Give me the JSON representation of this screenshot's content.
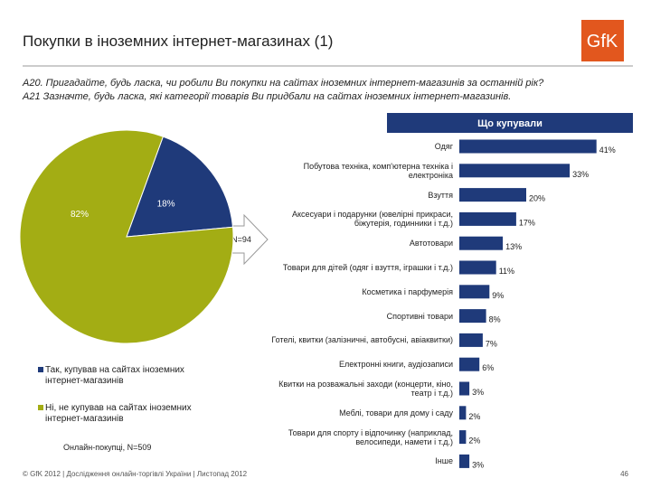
{
  "header": {
    "title": "Покупки в іноземних інтернет-магазинах (1)",
    "logo": "GfK"
  },
  "questions": [
    "A20. Пригадайте, будь ласка, чи робили Ви покупки на сайтах іноземних інтернет-магазинів за останній рік?",
    "A21 Зазначте, будь ласка, які категорії товарів Ви придбали на сайтах іноземних інтернет-магазинів."
  ],
  "arrow_label": "N=94",
  "footer": "© GfK 2012 | Дослідження онлайн-торгівлі України | Листопад 2012",
  "page_number": "46",
  "chart_data": [
    {
      "type": "pie",
      "categories": [
        "Так, купував на сайтах іноземних інтернет-магазинів",
        "Ні, не купував на сайтах іноземних інтернет-магазинів"
      ],
      "values": [
        18,
        82
      ],
      "value_labels": [
        "18%",
        "82%"
      ],
      "colors": [
        "#1f3a7a",
        "#a3ad14"
      ],
      "note": "Онлайн-покупці, N=509"
    },
    {
      "type": "bar",
      "orientation": "horizontal",
      "title": "Що купували",
      "categories": [
        "Одяг",
        "Побутова техніка, комп'ютерна техніка і електроніка",
        "Взуття",
        "Аксесуари і подарунки (ювелірні прикраси, біжутерія, годинники і т.д.)",
        "Автотовари",
        "Товари для дітей (одяг і взуття, іграшки і т.д.)",
        "Косметика і парфумерія",
        "Спортивні товари",
        "Готелі, квитки (залізничні, автобусні, авіаквитки)",
        "Електронні книги, аудіозаписи",
        "Квитки на розважальні заходи (концерти, кіно, театр і т.д.)",
        "Меблі, товари для дому і саду",
        "Товари для спорту і відпочинку (наприклад, велосипеди, намети і т.д.)",
        "Інше"
      ],
      "values": [
        41,
        33,
        20,
        17,
        13,
        11,
        9,
        8,
        7,
        6,
        3,
        2,
        2,
        3
      ],
      "value_labels": [
        "41%",
        "33%",
        "20%",
        "17%",
        "13%",
        "11%",
        "9%",
        "8%",
        "7%",
        "6%",
        "3%",
        "2%",
        "2%",
        "3%"
      ],
      "color": "#1f3a7a"
    }
  ]
}
